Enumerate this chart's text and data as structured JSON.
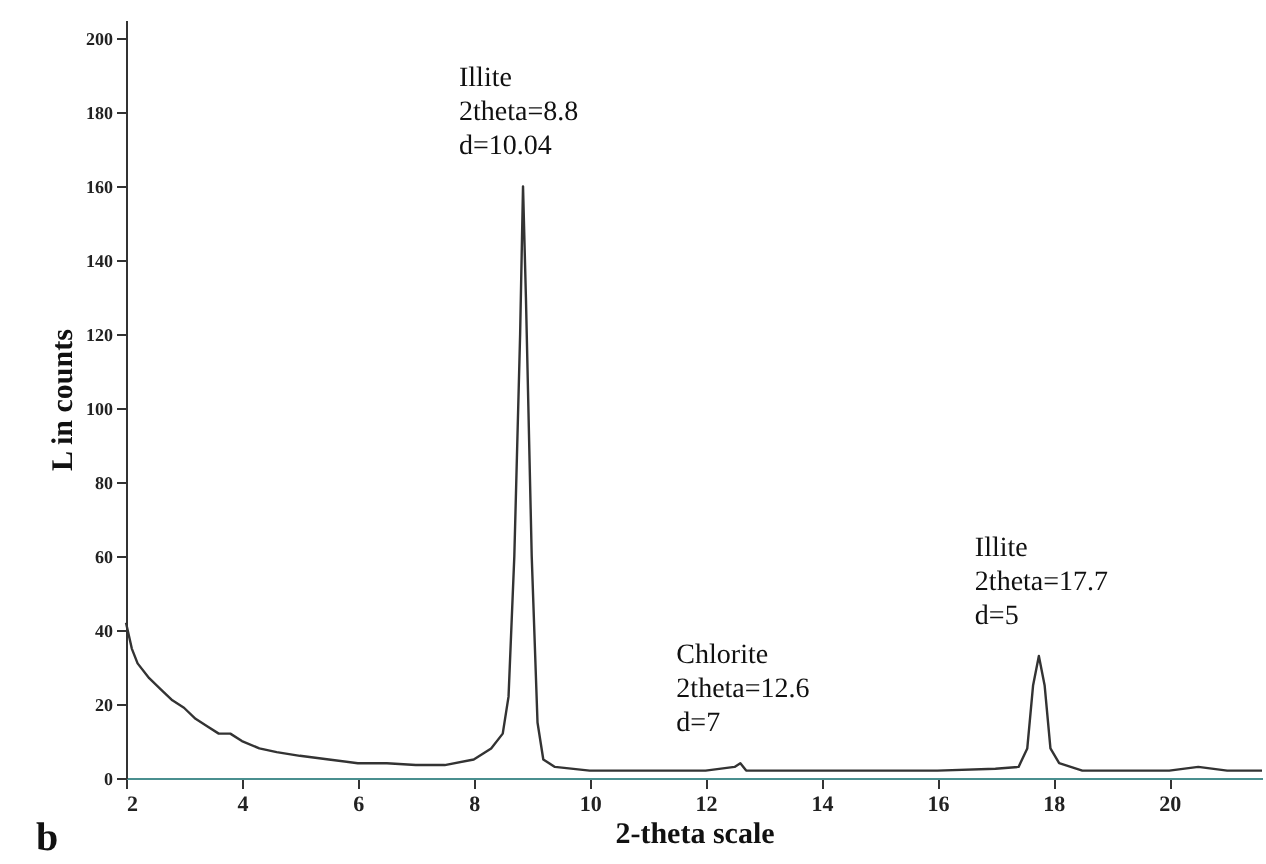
{
  "chart_data": {
    "type": "line",
    "xlabel": "2-theta scale",
    "ylabel": "L in counts",
    "x": [
      2.0,
      2.1,
      2.2,
      2.4,
      2.6,
      2.8,
      3.0,
      3.2,
      3.4,
      3.6,
      3.8,
      4.0,
      4.3,
      4.6,
      5.0,
      5.5,
      6.0,
      6.5,
      7.0,
      7.5,
      8.0,
      8.3,
      8.5,
      8.6,
      8.7,
      8.8,
      8.85,
      8.9,
      9.0,
      9.1,
      9.2,
      9.4,
      10,
      11,
      12,
      12.5,
      12.6,
      12.7,
      13,
      14,
      15,
      16,
      17,
      17.4,
      17.55,
      17.65,
      17.75,
      17.85,
      17.95,
      18.1,
      18.5,
      19,
      20,
      20.5,
      21,
      21.6
    ],
    "series": [
      {
        "color": "#333333",
        "values": [
          42,
          35,
          31,
          27,
          24,
          21,
          19,
          16,
          14,
          12,
          12,
          10,
          8,
          7,
          6,
          5,
          4,
          4,
          3.5,
          3.5,
          5,
          8,
          12,
          22,
          60,
          120,
          160,
          130,
          60,
          15,
          5,
          3,
          2,
          2,
          2,
          3,
          4,
          2,
          2,
          2,
          2,
          2,
          2.5,
          3,
          8,
          25,
          33,
          25,
          8,
          4,
          2,
          2,
          2,
          3,
          2,
          2
        ]
      }
    ],
    "xlim": [
      2,
      21.6
    ],
    "ylim": [
      0,
      205
    ],
    "xticks": [
      2,
      4,
      6,
      8,
      10,
      12,
      14,
      16,
      18,
      20
    ],
    "yticks": [
      0,
      20,
      40,
      60,
      80,
      100,
      120,
      140,
      160,
      180,
      200
    ],
    "grid": false,
    "marker": "none",
    "line_style": "solid",
    "annotations": [
      {
        "text": "Illite\n2theta=8.8\nd=10.04",
        "x": 8.85,
        "y": 160
      },
      {
        "text": "Chlorite\n2theta=12.6\nd=7",
        "x": 12.6,
        "y": 4
      },
      {
        "text": "Illite\n2theta=17.7\nd=5",
        "x": 17.75,
        "y": 33
      },
      "b"
    ]
  }
}
